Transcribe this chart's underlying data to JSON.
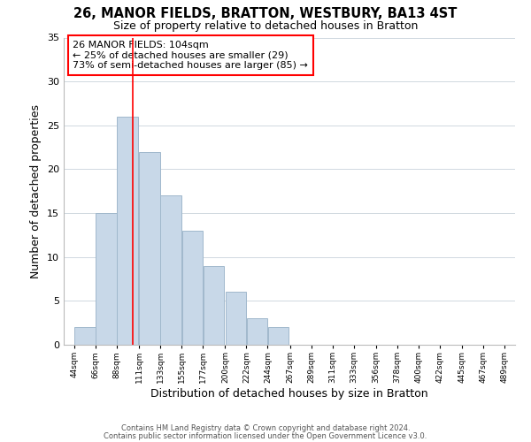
{
  "title": "26, MANOR FIELDS, BRATTON, WESTBURY, BA13 4ST",
  "subtitle": "Size of property relative to detached houses in Bratton",
  "xlabel": "Distribution of detached houses by size in Bratton",
  "ylabel": "Number of detached properties",
  "bar_left_edges": [
    44,
    66,
    88,
    111,
    133,
    155,
    177,
    200,
    222,
    244,
    267,
    289,
    311,
    333,
    356,
    378,
    400,
    422,
    445,
    467
  ],
  "bar_widths": [
    22,
    22,
    22,
    22,
    22,
    22,
    22,
    22,
    22,
    22,
    22,
    22,
    22,
    22,
    22,
    22,
    22,
    22,
    22,
    22
  ],
  "bar_heights": [
    2,
    15,
    26,
    22,
    17,
    13,
    9,
    6,
    3,
    2,
    0,
    0,
    0,
    0,
    0,
    0,
    0,
    0,
    0,
    0
  ],
  "bar_color": "#c8d8e8",
  "bar_edge_color": "#a0b8cc",
  "xtick_labels": [
    "44sqm",
    "66sqm",
    "88sqm",
    "111sqm",
    "133sqm",
    "155sqm",
    "177sqm",
    "200sqm",
    "222sqm",
    "244sqm",
    "267sqm",
    "289sqm",
    "311sqm",
    "333sqm",
    "356sqm",
    "378sqm",
    "400sqm",
    "422sqm",
    "445sqm",
    "467sqm",
    "489sqm"
  ],
  "xtick_positions": [
    44,
    66,
    88,
    111,
    133,
    155,
    177,
    200,
    222,
    244,
    267,
    289,
    311,
    333,
    356,
    378,
    400,
    422,
    445,
    467,
    489
  ],
  "ylim": [
    0,
    35
  ],
  "yticks": [
    0,
    5,
    10,
    15,
    20,
    25,
    30,
    35
  ],
  "xlim": [
    33,
    500
  ],
  "red_line_x": 104,
  "annotation_title": "26 MANOR FIELDS: 104sqm",
  "annotation_line1": "← 25% of detached houses are smaller (29)",
  "annotation_line2": "73% of semi-detached houses are larger (85) →",
  "footer_line1": "Contains HM Land Registry data © Crown copyright and database right 2024.",
  "footer_line2": "Contains public sector information licensed under the Open Government Licence v3.0.",
  "background_color": "#ffffff",
  "grid_color": "#d0d8e0"
}
